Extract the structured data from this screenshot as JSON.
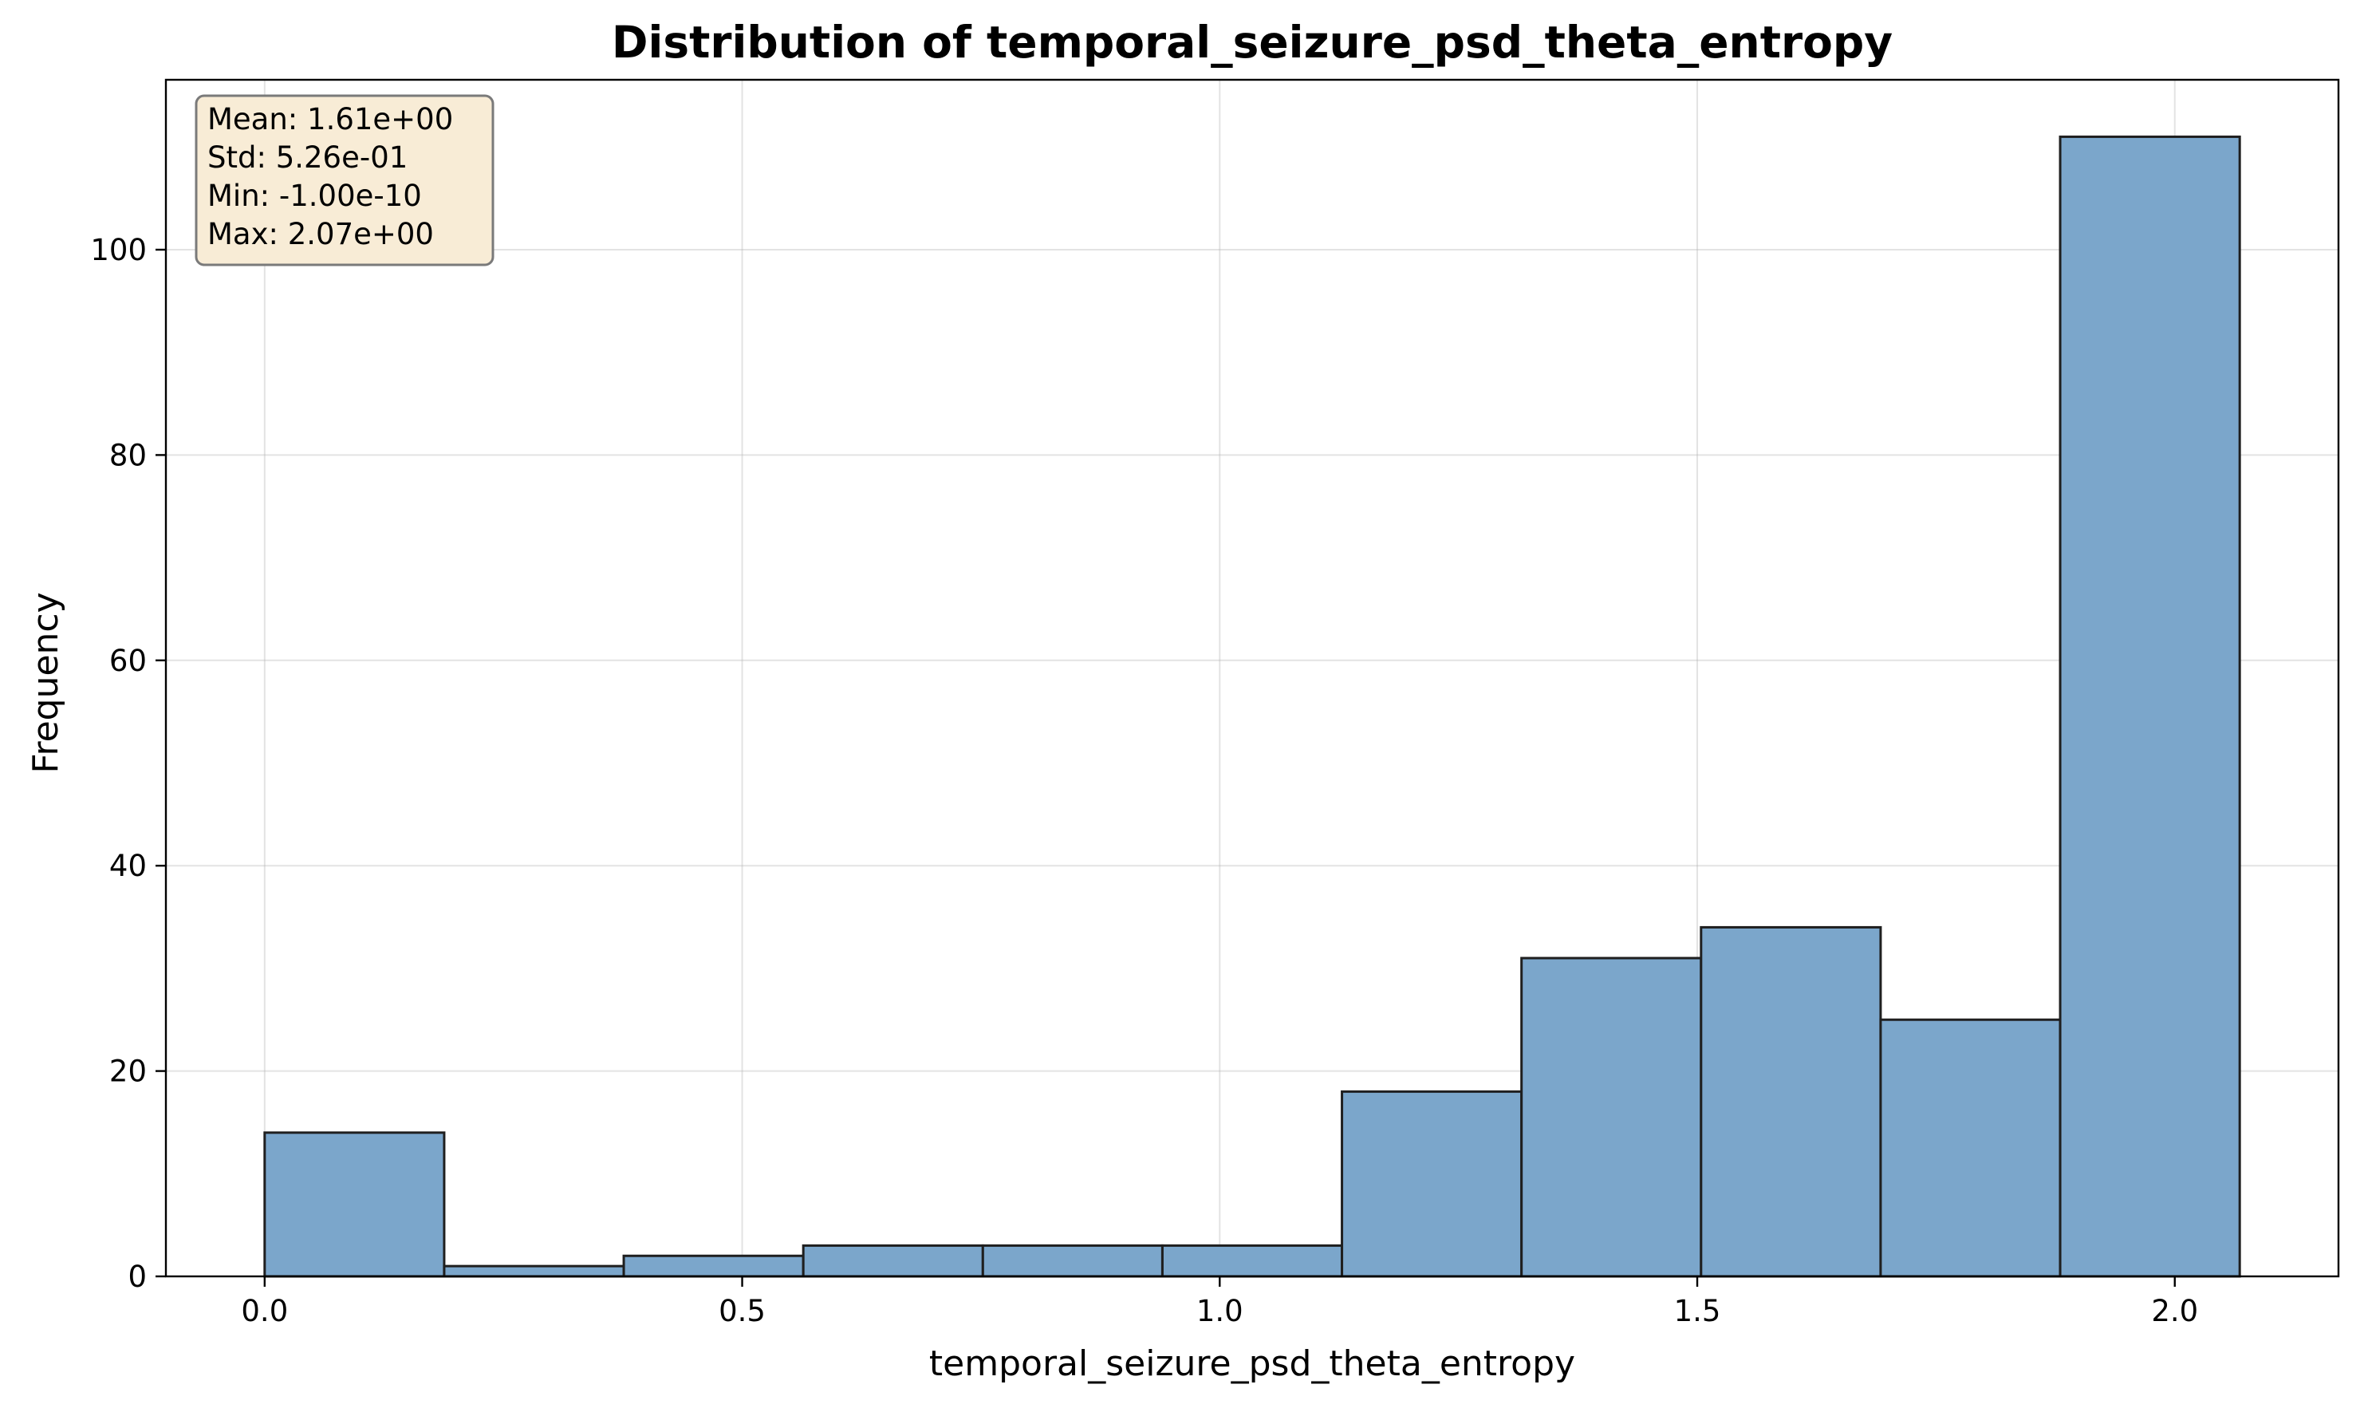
{
  "chart_data": {
    "type": "bar",
    "title": "Distribution of temporal_seizure_psd_theta_entropy",
    "xlabel": "temporal_seizure_psd_theta_entropy",
    "ylabel": "Frequency",
    "bin_edges": [
      0.0,
      0.188,
      0.376,
      0.564,
      0.752,
      0.94,
      1.128,
      1.316,
      1.504,
      1.692,
      1.88,
      2.068
    ],
    "values": [
      14,
      1,
      2,
      3,
      3,
      3,
      18,
      31,
      34,
      25,
      111
    ],
    "xlim": [
      -0.1034,
      2.1714
    ],
    "ylim": [
      0,
      116.55
    ],
    "xticks": [
      0.0,
      0.5,
      1.0,
      1.5,
      2.0
    ],
    "xtick_labels": [
      "0.0",
      "0.5",
      "1.0",
      "1.5",
      "2.0"
    ],
    "yticks": [
      0,
      20,
      40,
      60,
      80,
      100
    ],
    "ytick_labels": [
      "0",
      "20",
      "40",
      "60",
      "80",
      "100"
    ],
    "grid": true,
    "bar_color": "#7ba6cb",
    "edge_color": "#1f1f1f",
    "stats_box": {
      "placement": "top-left",
      "background": "#f8ecd6",
      "border": "#7a7a7a",
      "lines": [
        "Mean: 1.61e+00",
        "Std: 5.26e-01",
        "Min: -1.00e-10",
        "Max: 2.07e+00"
      ]
    }
  }
}
